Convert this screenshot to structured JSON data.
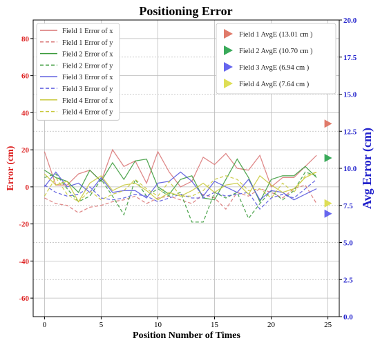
{
  "chart_data": {
    "type": "line",
    "title": "Positioning Error",
    "xlabel": "Position Number of Times",
    "ylabel": "Error (cm)",
    "y2label": "Avg Error (cm)",
    "xlim": [
      -1,
      26
    ],
    "ylim": [
      -70,
      90
    ],
    "y2lim": [
      0,
      20
    ],
    "xticks": [
      0,
      5,
      10,
      15,
      20,
      25
    ],
    "yticks": [
      -60,
      -40,
      -20,
      0,
      20,
      40,
      60,
      80
    ],
    "y2ticks": [
      0.0,
      2.5,
      5.0,
      7.5,
      10.0,
      12.5,
      15.0,
      17.5,
      20.0
    ],
    "grid": true,
    "x": [
      0,
      1,
      2,
      3,
      4,
      5,
      6,
      7,
      8,
      9,
      10,
      11,
      12,
      13,
      14,
      15,
      16,
      17,
      18,
      19,
      20,
      21,
      22,
      23,
      24
    ],
    "series": [
      {
        "name": "Field 1 Error of x",
        "color": "#d97474",
        "dash": false,
        "values": [
          19,
          1,
          1,
          7,
          9,
          3,
          20,
          11,
          14,
          2,
          19,
          8,
          0,
          3,
          16,
          12,
          18,
          10,
          9,
          17,
          0,
          5,
          5,
          11,
          17
        ]
      },
      {
        "name": "Field 1 Error of y",
        "color": "#d97474",
        "dash": true,
        "values": [
          -6,
          -9,
          -10,
          -14,
          -11,
          -10,
          -8,
          -7,
          -5,
          -9,
          -6,
          -5,
          -7,
          -9,
          -4,
          -6,
          -12,
          -3,
          -5,
          -1,
          -3,
          -6,
          -1,
          1,
          -9
        ]
      },
      {
        "name": "Field 2 Error of x",
        "color": "#3a9a3a",
        "dash": false,
        "values": [
          9,
          5,
          3,
          -3,
          9,
          3,
          13,
          4,
          14,
          15,
          0,
          -4,
          4,
          6,
          -6,
          -7,
          4,
          15,
          5,
          -8,
          4,
          6,
          6,
          11,
          5
        ]
      },
      {
        "name": "Field 2 Error of y",
        "color": "#3a9a3a",
        "dash": true,
        "values": [
          5,
          7,
          -1,
          -8,
          -5,
          4,
          -5,
          -15,
          4,
          -5,
          -1,
          -5,
          -3,
          -19,
          -19,
          -3,
          -6,
          -3,
          -17,
          -9,
          -2,
          -7,
          -2,
          8,
          6
        ]
      },
      {
        "name": "Field 3 Error of x",
        "color": "#5555dd",
        "dash": false,
        "values": [
          0,
          8,
          0,
          2,
          -3,
          5,
          -3,
          -2,
          -2,
          -6,
          2,
          3,
          8,
          3,
          -5,
          3,
          0,
          -3,
          4,
          -7,
          -2,
          -3,
          -7,
          -4,
          -1
        ]
      },
      {
        "name": "Field 3 Error of y",
        "color": "#5555dd",
        "dash": true,
        "values": [
          1,
          -3,
          -5,
          -4,
          0,
          -6,
          -7,
          -6,
          -4,
          -5,
          -8,
          -6,
          -4,
          -6,
          -6,
          -3,
          -5,
          -4,
          -3,
          -12,
          -6,
          -4,
          -6,
          -1,
          4
        ]
      },
      {
        "name": "Field 4 Error of x",
        "color": "#c8c83a",
        "dash": false,
        "values": [
          7,
          1,
          3,
          -8,
          2,
          6,
          -2,
          1,
          2,
          -2,
          -7,
          -3,
          -5,
          -2,
          2,
          -3,
          1,
          2,
          -4,
          6,
          1,
          -3,
          -1,
          5,
          8
        ]
      },
      {
        "name": "Field 4 Error of y",
        "color": "#c8c83a",
        "dash": true,
        "values": [
          -5,
          5,
          -4,
          -8,
          -2,
          -7,
          -4,
          -2,
          4,
          -1,
          -5,
          3,
          -5,
          -5,
          -2,
          4,
          6,
          4,
          -2,
          -1,
          -6,
          2,
          -3,
          6,
          8
        ]
      }
    ],
    "avg_markers": [
      {
        "name": "Field 1 AvgE (13.01 cm )",
        "value": 13.01,
        "x": 25,
        "color": "#e07a6a"
      },
      {
        "name": "Field 2 AvgE (10.70 cm )",
        "value": 10.7,
        "x": 25,
        "color": "#3aaa5a"
      },
      {
        "name": "Field 3 AvgE (6.94 cm )",
        "value": 6.94,
        "x": 25,
        "color": "#6666ee"
      },
      {
        "name": "Field 4 AvgE (7.64 cm )",
        "value": 7.64,
        "x": 25,
        "color": "#dede55"
      }
    ],
    "legend_left_position": "top-left",
    "legend_right_position": "top-right"
  },
  "colors": {
    "left_axis": "#dd2222",
    "right_axis": "#2222cc",
    "grid": "#bbbbbb"
  }
}
